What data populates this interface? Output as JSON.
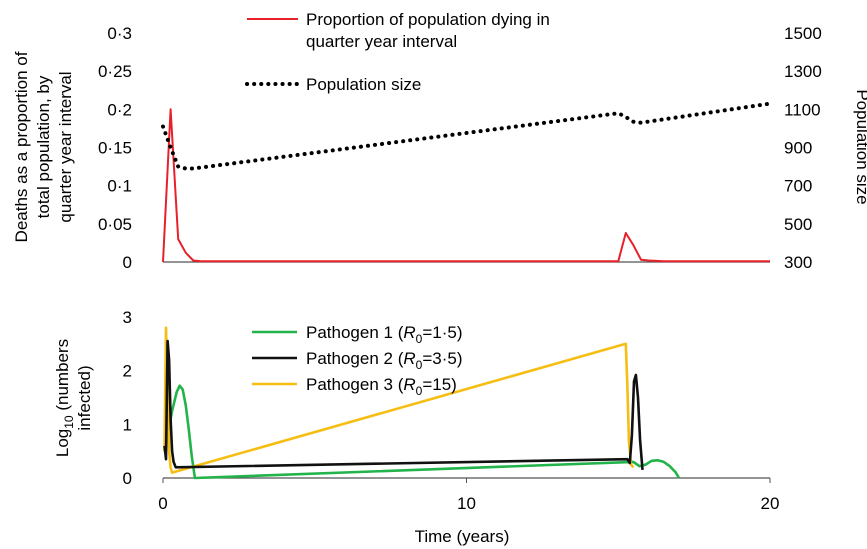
{
  "chart_data": [
    {
      "type": "line",
      "panel": "top",
      "xlim": [
        0,
        20
      ],
      "ylim": [
        0,
        0.3
      ],
      "y2lim": [
        300,
        1500
      ],
      "ylabel_lines": [
        "Deaths as a proportion of",
        "total population, by",
        "quarter year interval"
      ],
      "y2label": "Population size",
      "yticks": [
        {
          "v": 0,
          "label": "0"
        },
        {
          "v": 0.05,
          "label": "0·05"
        },
        {
          "v": 0.1,
          "label": "0·1"
        },
        {
          "v": 0.15,
          "label": "0·15"
        },
        {
          "v": 0.2,
          "label": "0·2"
        },
        {
          "v": 0.25,
          "label": "0·25"
        },
        {
          "v": 0.3,
          "label": "0·3"
        }
      ],
      "y2ticks": [
        {
          "v": 300,
          "label": "300"
        },
        {
          "v": 500,
          "label": "500"
        },
        {
          "v": 700,
          "label": "700"
        },
        {
          "v": 900,
          "label": "900"
        },
        {
          "v": 1100,
          "label": "1100"
        },
        {
          "v": 1300,
          "label": "1300"
        },
        {
          "v": 1500,
          "label": "1500"
        }
      ],
      "series": [
        {
          "name_lines": [
            "Proportion of population dying in",
            "quarter year interval"
          ],
          "color": "#e8202a",
          "style": "solid",
          "axis": "left",
          "x": [
            0,
            0.25,
            0.5,
            0.75,
            1.0,
            1.25,
            5,
            10,
            15.0,
            15.25,
            15.5,
            15.75,
            16.0,
            16.5,
            17,
            20
          ],
          "y": [
            0,
            0.2,
            0.03,
            0.012,
            0.002,
            0.001,
            0.001,
            0.001,
            0.001,
            0.038,
            0.022,
            0.003,
            0.002,
            0.001,
            0.001,
            0.001
          ]
        },
        {
          "name": "Population size",
          "color": "#000000",
          "style": "dotted",
          "axis": "right",
          "x": [
            0,
            0.25,
            0.5,
            0.75,
            1.0,
            15.0,
            15.25,
            15.5,
            15.75,
            20
          ],
          "y": [
            1010,
            900,
            800,
            790,
            790,
            1080,
            1060,
            1035,
            1030,
            1130
          ]
        }
      ]
    },
    {
      "type": "line",
      "panel": "bottom",
      "xlim": [
        0,
        20
      ],
      "ylim": [
        0,
        3
      ],
      "xlabel": "Time (years)",
      "xticks": [
        {
          "v": 0,
          "label": "0"
        },
        {
          "v": 10,
          "label": "10"
        },
        {
          "v": 20,
          "label": "20"
        }
      ],
      "yticks": [
        {
          "v": 0,
          "label": "0"
        },
        {
          "v": 1,
          "label": "1"
        },
        {
          "v": 2,
          "label": "2"
        },
        {
          "v": 3,
          "label": "3"
        }
      ],
      "ylabel": {
        "prefix": "Log",
        "sub": "10",
        "rest": " (numbers",
        "line2": "infected)"
      },
      "series": [
        {
          "name": {
            "prefix": "Pathogen 1 (",
            "R": "R",
            "sub": "0",
            "rest": "=1·5)"
          },
          "color": "#22b34b",
          "x": [
            0.05,
            0.15,
            0.3,
            0.45,
            0.55,
            0.65,
            0.75,
            0.85,
            0.95,
            1.05,
            15.5,
            15.7,
            15.9,
            16.1,
            16.3,
            16.5,
            16.7,
            16.9,
            17.0
          ],
          "y": [
            0.5,
            0.8,
            1.25,
            1.6,
            1.72,
            1.65,
            1.35,
            0.9,
            0.4,
            0,
            0.3,
            0.22,
            0.25,
            0.32,
            0.33,
            0.3,
            0.22,
            0.1,
            0
          ]
        },
        {
          "name": {
            "prefix": "Pathogen 2 (",
            "R": "R",
            "sub": "0",
            "rest": "=3·5)"
          },
          "color": "#111111",
          "x": [
            0.05,
            0.1,
            0.15,
            0.2,
            0.25,
            0.3,
            0.35,
            0.42,
            15.3,
            15.38,
            15.45,
            15.52,
            15.58,
            15.65,
            15.72,
            15.8
          ],
          "y": [
            0.6,
            0.35,
            2.55,
            2.2,
            1.1,
            0.5,
            0.3,
            0.2,
            0.35,
            0.28,
            0.8,
            1.8,
            1.92,
            1.5,
            0.7,
            0.15
          ]
        },
        {
          "name": {
            "prefix": "Pathogen 3 (",
            "R": "R",
            "sub": "0",
            "rest": "=15)"
          },
          "color": "#f6be12",
          "x": [
            0.05,
            0.1,
            0.15,
            0.2,
            0.25,
            0.3,
            15.25,
            15.3,
            15.35,
            15.42,
            15.5
          ],
          "y": [
            0.5,
            2.8,
            1.5,
            0.5,
            0.2,
            0.1,
            2.5,
            1.7,
            0.7,
            0.25,
            0.2
          ]
        }
      ]
    }
  ]
}
